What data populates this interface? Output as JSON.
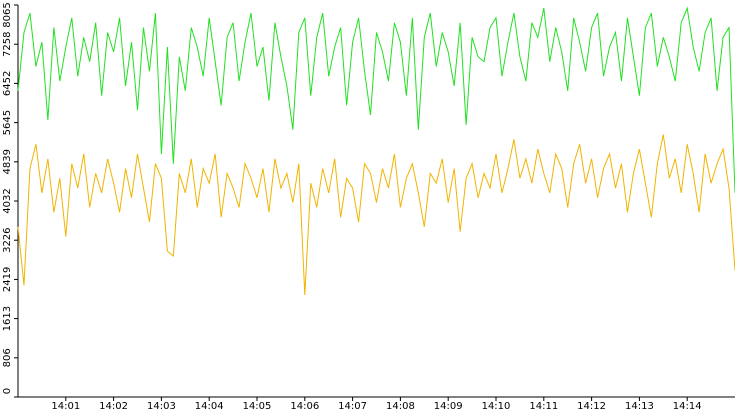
{
  "chart_data": {
    "type": "line",
    "categories": [
      null,
      null,
      null,
      null,
      null,
      null,
      null,
      null,
      "14:01",
      null,
      null,
      null,
      null,
      null,
      null,
      null,
      "14:02",
      null,
      null,
      null,
      null,
      null,
      null,
      null,
      "14:03",
      null,
      null,
      null,
      null,
      null,
      null,
      null,
      "14:04",
      null,
      null,
      null,
      null,
      null,
      null,
      null,
      "14:05",
      null,
      null,
      null,
      null,
      null,
      null,
      null,
      "14:06",
      null,
      null,
      null,
      null,
      null,
      null,
      null,
      "14:07",
      null,
      null,
      null,
      null,
      null,
      null,
      null,
      "14:08",
      null,
      null,
      null,
      null,
      null,
      null,
      null,
      "14:09",
      null,
      null,
      null,
      null,
      null,
      null,
      null,
      "14:10",
      null,
      null,
      null,
      null,
      null,
      null,
      null,
      "14:11",
      null,
      null,
      null,
      null,
      null,
      null,
      null,
      "14:12",
      null,
      null,
      null,
      null,
      null,
      null,
      null,
      "14:13",
      null,
      null,
      null,
      null,
      null,
      null,
      null,
      "14:14",
      null,
      null,
      null,
      null,
      null,
      null,
      null,
      null
    ],
    "series": [
      {
        "color": "#22e022",
        "values": [
          6300,
          7500,
          7900,
          6800,
          7300,
          5700,
          7600,
          6500,
          7200,
          7800,
          6600,
          7400,
          6900,
          7700,
          6200,
          7500,
          7100,
          7800,
          6400,
          7300,
          5900,
          7600,
          6700,
          7900,
          5000,
          7200,
          4800,
          7000,
          6300,
          7600,
          7200,
          6600,
          7800,
          6900,
          6000,
          7400,
          7700,
          6500,
          7300,
          7900,
          6800,
          7200,
          6100,
          7700,
          7000,
          6400,
          5500,
          7500,
          7800,
          6200,
          7400,
          7900,
          6600,
          7200,
          7600,
          6000,
          7300,
          7800,
          6700,
          5800,
          7500,
          7100,
          6500,
          7700,
          7300,
          6200,
          7800,
          5500,
          7400,
          7900,
          6800,
          7500,
          7100,
          6400,
          7700,
          5600,
          7400,
          7000,
          6900,
          7600,
          7800,
          6600,
          7300,
          7900,
          7000,
          6500,
          7700,
          7400,
          8000,
          6900,
          7600,
          7100,
          6300,
          7800,
          7300,
          6700,
          7600,
          7900,
          6600,
          7200,
          7500,
          6500,
          7800,
          7000,
          6200,
          7600,
          7900,
          6800,
          7400,
          7000,
          6500,
          7700,
          8000,
          7200,
          6700,
          7500,
          7800,
          6300,
          7400,
          7600,
          4200
        ]
      },
      {
        "color": "#f0b400",
        "values": [
          3500,
          2300,
          4700,
          5200,
          4200,
          4900,
          3800,
          4500,
          3300,
          4800,
          4300,
          5000,
          3900,
          4600,
          4200,
          4900,
          4400,
          3800,
          4700,
          4100,
          5000,
          4300,
          3600,
          4800,
          4500,
          3000,
          2900,
          4600,
          4200,
          4900,
          3900,
          4700,
          4400,
          5000,
          3700,
          4600,
          4300,
          3900,
          4800,
          4500,
          4100,
          4700,
          3800,
          4900,
          4300,
          4600,
          4000,
          4800,
          2100,
          4400,
          3900,
          4700,
          4200,
          4900,
          3700,
          4500,
          4300,
          3600,
          4800,
          4600,
          4000,
          4700,
          4300,
          5000,
          3900,
          4500,
          4800,
          4200,
          3500,
          4600,
          4400,
          4900,
          4000,
          4700,
          3400,
          4500,
          4800,
          4100,
          4600,
          4300,
          5000,
          4200,
          4700,
          5300,
          4500,
          4900,
          4400,
          5100,
          4600,
          4200,
          5000,
          4700,
          3900,
          4800,
          5200,
          4400,
          4900,
          4100,
          4700,
          5000,
          4300,
          4800,
          3800,
          4600,
          5100,
          4400,
          3700,
          4800,
          5400,
          4500,
          4900,
          4200,
          5200,
          4600,
          3800,
          5000,
          4400,
          4800,
          5100,
          4300,
          2600
        ]
      }
    ],
    "ylim": [
      0,
      8065
    ],
    "yticks": [
      0,
      806,
      1613,
      2419,
      3226,
      4032,
      4839,
      5645,
      6452,
      7258,
      8065
    ],
    "grid": false
  }
}
